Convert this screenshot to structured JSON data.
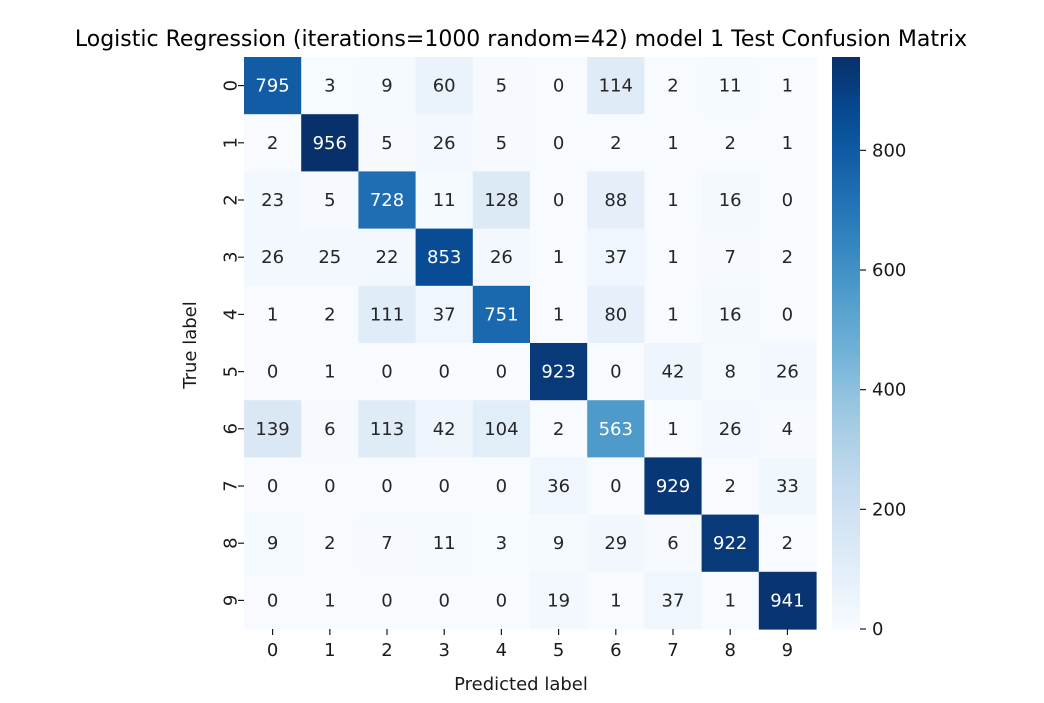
{
  "chart_data": {
    "type": "heatmap",
    "title": "Logistic Regression (iterations=1000 random=42) model 1 Test Confusion Matrix",
    "xlabel": "Predicted label",
    "ylabel": "True label",
    "x_categories": [
      "0",
      "1",
      "2",
      "3",
      "4",
      "5",
      "6",
      "7",
      "8",
      "9"
    ],
    "y_categories": [
      "0",
      "1",
      "2",
      "3",
      "4",
      "5",
      "6",
      "7",
      "8",
      "9"
    ],
    "matrix": [
      [
        795,
        3,
        9,
        60,
        5,
        0,
        114,
        2,
        11,
        1
      ],
      [
        2,
        956,
        5,
        26,
        5,
        0,
        2,
        1,
        2,
        1
      ],
      [
        23,
        5,
        728,
        11,
        128,
        0,
        88,
        1,
        16,
        0
      ],
      [
        26,
        25,
        22,
        853,
        26,
        1,
        37,
        1,
        7,
        2
      ],
      [
        1,
        2,
        111,
        37,
        751,
        1,
        80,
        1,
        16,
        0
      ],
      [
        0,
        1,
        0,
        0,
        0,
        923,
        0,
        42,
        8,
        26
      ],
      [
        139,
        6,
        113,
        42,
        104,
        2,
        563,
        1,
        26,
        4
      ],
      [
        0,
        0,
        0,
        0,
        0,
        36,
        0,
        929,
        2,
        33
      ],
      [
        9,
        2,
        7,
        11,
        3,
        9,
        29,
        6,
        922,
        2
      ],
      [
        0,
        1,
        0,
        0,
        0,
        19,
        1,
        37,
        1,
        941
      ]
    ],
    "colormap": "Blues",
    "colorbar": {
      "min": 0,
      "max": 956,
      "ticks": [
        0,
        200,
        400,
        600,
        800
      ],
      "tick_labels": [
        "0",
        "200",
        "400",
        "600",
        "800"
      ]
    },
    "colors": {
      "low": "#f7fbff",
      "high": "#08306b"
    }
  }
}
